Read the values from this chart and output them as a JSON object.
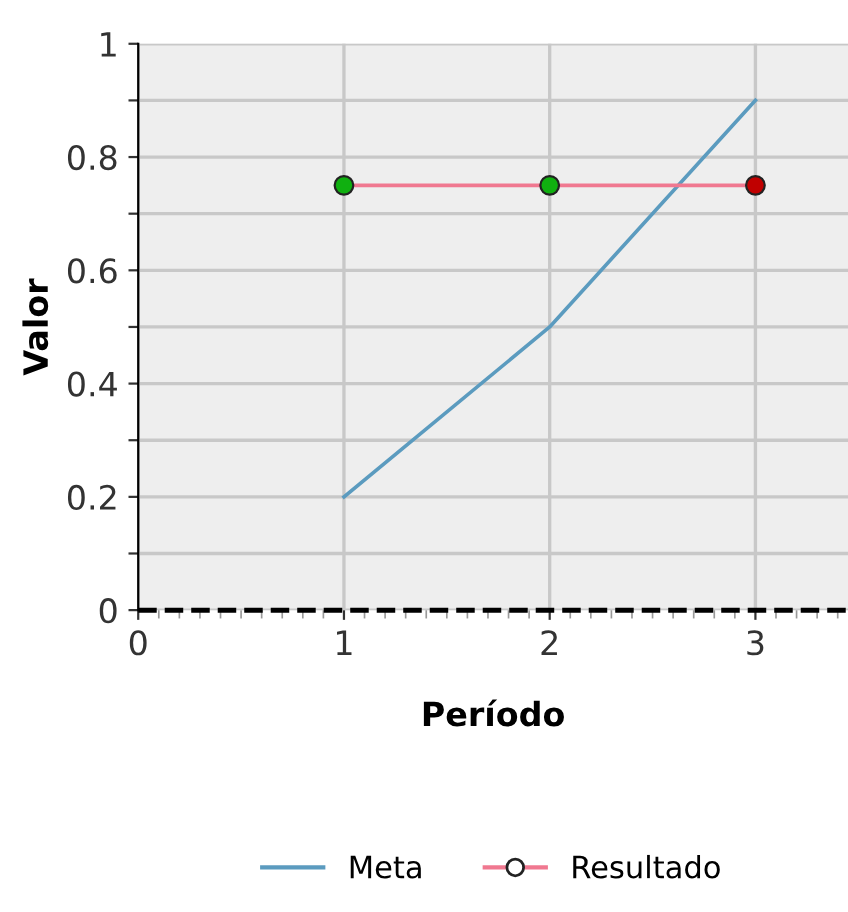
{
  "chart_data": {
    "type": "line",
    "xlabel": "Período",
    "ylabel": "Valor",
    "x": [
      1,
      2,
      3
    ],
    "series": [
      {
        "name": "Meta",
        "color": "#5b9bbf",
        "values": [
          0.2,
          0.5,
          0.9
        ],
        "marker": "none"
      },
      {
        "name": "Resultado",
        "color": "#f07890",
        "values": [
          0.75,
          0.75,
          0.75
        ],
        "marker": "circle",
        "colors": [
          "#10b010",
          "#10b010",
          "#c00000"
        ]
      }
    ],
    "xlim": [
      0,
      3.45
    ],
    "xticks": [
      0,
      1,
      2,
      3
    ],
    "ylim": [
      0,
      1
    ],
    "yticks": [
      0,
      {
        "value": 0.1,
        "label": null
      },
      0.2,
      {
        "value": 0.3,
        "label": null
      },
      0.4,
      {
        "value": 0.5,
        "label": null
      },
      0.6,
      {
        "value": 0.7,
        "label": null
      },
      0.8,
      {
        "value": 0.9,
        "label": null
      },
      1
    ],
    "ref_lines": [
      {
        "axis": "y",
        "value": 0,
        "color": "#000000",
        "line_style": "dashed"
      }
    ],
    "grid": true,
    "legend": "bottom"
  }
}
